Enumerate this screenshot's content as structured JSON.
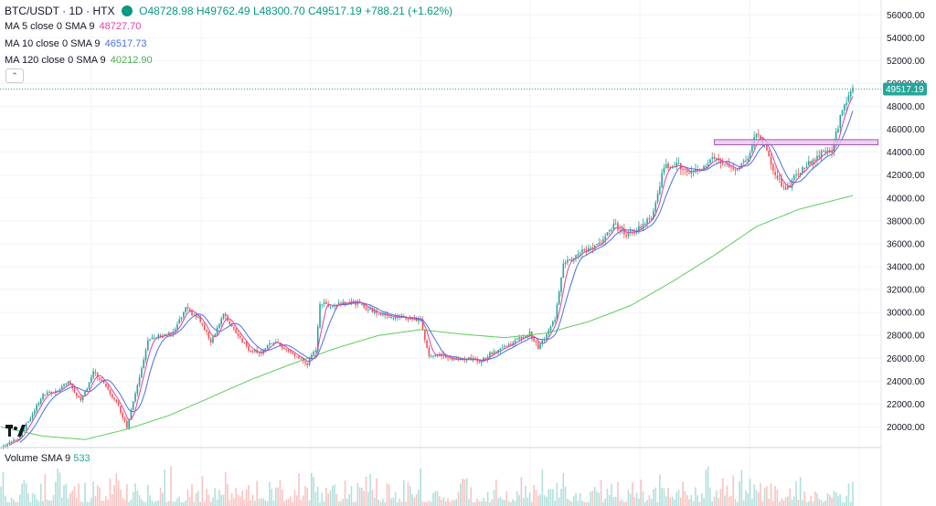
{
  "header": {
    "symbol": "BTC/USDT · 1D · HTX",
    "open": "O48728.98",
    "high": "H49762.49",
    "low": "L48300.70",
    "close": "C49517.19",
    "change": "+788.21 (+1.62%)"
  },
  "indicators": [
    {
      "label": "MA 5 close 0 SMA 9",
      "value": "48727.70",
      "color": "#e040a0"
    },
    {
      "label": "MA 10 close 0 SMA 9",
      "value": "46517.73",
      "color": "#4a6fe0"
    },
    {
      "label": "MA 120 close 0 SMA 9",
      "value": "40212.90",
      "color": "#5ccc5c"
    }
  ],
  "volume_legend": {
    "label": "Volume SMA 9",
    "value": "533"
  },
  "price_tag": "49517.19",
  "colors": {
    "up": "#26a69a",
    "down": "#ef5350",
    "ma5": "#e040a0",
    "ma10": "#4a6fe0",
    "ma120": "#5ccc5c",
    "zone_fill": "#e8c4ef",
    "zone_stroke": "#a05ab0",
    "tag": "#26a69a"
  },
  "icons": {
    "collapse": "chevron-up-icon",
    "logo": "tradingview-logo"
  },
  "chart_data": {
    "type": "candlestick",
    "y_ticks": [
      20000,
      22000,
      24000,
      26000,
      28000,
      30000,
      32000,
      34000,
      36000,
      38000,
      40000,
      42000,
      44000,
      46000,
      48000,
      50000,
      52000,
      54000,
      56000
    ],
    "y_tick_labels": [
      "20000.00",
      "22000.00",
      "24000.00",
      "26000.00",
      "28000.00",
      "30000.00",
      "32000.00",
      "34000.00",
      "36000.00",
      "38000.00",
      "40000.00",
      "42000.00",
      "44000.00",
      "46000.00",
      "48000.00",
      "50000.00",
      "52000.00",
      "54000.00",
      "56000.00"
    ],
    "ylim": [
      18200,
      57300
    ],
    "close_path": [
      [
        0,
        18200
      ],
      [
        8,
        19000
      ],
      [
        14,
        20800
      ],
      [
        20,
        22800
      ],
      [
        26,
        23100
      ],
      [
        32,
        24000
      ],
      [
        38,
        22200
      ],
      [
        44,
        24800
      ],
      [
        50,
        23500
      ],
      [
        56,
        21800
      ],
      [
        60,
        20000
      ],
      [
        66,
        24500
      ],
      [
        70,
        27500
      ],
      [
        76,
        28000
      ],
      [
        82,
        28200
      ],
      [
        88,
        30300
      ],
      [
        94,
        29500
      ],
      [
        100,
        27500
      ],
      [
        106,
        29800
      ],
      [
        112,
        28300
      ],
      [
        118,
        26800
      ],
      [
        124,
        26500
      ],
      [
        130,
        27500
      ],
      [
        136,
        26700
      ],
      [
        142,
        26000
      ],
      [
        146,
        25500
      ],
      [
        150,
        26800
      ],
      [
        152,
        30800
      ],
      [
        158,
        30600
      ],
      [
        164,
        31000
      ],
      [
        170,
        30800
      ],
      [
        176,
        30200
      ],
      [
        182,
        29800
      ],
      [
        188,
        29600
      ],
      [
        194,
        29500
      ],
      [
        200,
        29300
      ],
      [
        204,
        26200
      ],
      [
        210,
        26300
      ],
      [
        216,
        25800
      ],
      [
        222,
        26000
      ],
      [
        228,
        25700
      ],
      [
        234,
        26500
      ],
      [
        240,
        27000
      ],
      [
        246,
        27600
      ],
      [
        252,
        28200
      ],
      [
        256,
        26900
      ],
      [
        260,
        28000
      ],
      [
        264,
        29500
      ],
      [
        268,
        34400
      ],
      [
        274,
        35000
      ],
      [
        280,
        35600
      ],
      [
        286,
        36000
      ],
      [
        292,
        37700
      ],
      [
        298,
        36800
      ],
      [
        304,
        37400
      ],
      [
        310,
        38300
      ],
      [
        316,
        42700
      ],
      [
        322,
        43000
      ],
      [
        328,
        42000
      ],
      [
        334,
        42600
      ],
      [
        340,
        43600
      ],
      [
        346,
        42800
      ],
      [
        352,
        42500
      ],
      [
        356,
        43700
      ],
      [
        360,
        45700
      ],
      [
        364,
        44700
      ],
      [
        368,
        42500
      ],
      [
        374,
        40500
      ],
      [
        378,
        41800
      ],
      [
        382,
        42500
      ],
      [
        386,
        43200
      ],
      [
        392,
        44000
      ],
      [
        396,
        44200
      ],
      [
        400,
        47000
      ],
      [
        404,
        49000
      ],
      [
        406,
        49500
      ]
    ],
    "ma120_path": [
      [
        0,
        20000
      ],
      [
        20,
        19200
      ],
      [
        40,
        18900
      ],
      [
        60,
        19800
      ],
      [
        80,
        21000
      ],
      [
        100,
        22600
      ],
      [
        120,
        24200
      ],
      [
        140,
        25600
      ],
      [
        160,
        26900
      ],
      [
        180,
        28000
      ],
      [
        200,
        28500
      ],
      [
        220,
        28100
      ],
      [
        240,
        27800
      ],
      [
        260,
        28200
      ],
      [
        280,
        29200
      ],
      [
        300,
        30600
      ],
      [
        320,
        32700
      ],
      [
        340,
        35000
      ],
      [
        360,
        37500
      ],
      [
        380,
        39000
      ],
      [
        406,
        40213
      ]
    ],
    "resistance_zone": {
      "low": 44650,
      "high": 45100,
      "from": 340,
      "to": 418
    }
  }
}
